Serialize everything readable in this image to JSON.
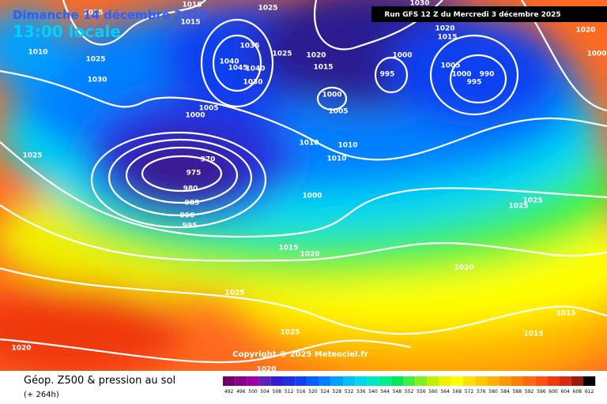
{
  "header": {
    "date": "Dimanche 14 décembre 2025",
    "time": "13:00 locale",
    "run": "Run GFS 12 Z du Mercredi 3 décembre 2025"
  },
  "copyright": "Copyright © 2025 Meteociel.fr",
  "footer": {
    "title": "Géop. Z500 & pression au sol",
    "lead": "(+ 264h)"
  },
  "isobar_labels": [
    1015,
    1015,
    1015,
    1025,
    1010,
    1025,
    1030,
    1035,
    1040,
    1045,
    1040,
    1030,
    1025,
    1020,
    1015,
    1000,
    1005,
    1005,
    1000,
    1000,
    995,
    1005,
    1000,
    995,
    990,
    1020,
    1015,
    1010,
    1010,
    1010,
    1025,
    970,
    975,
    980,
    985,
    990,
    995,
    1000,
    1025,
    1025,
    1015,
    1020,
    1020,
    1025,
    1015,
    1015,
    1025,
    1020,
    1020,
    1020,
    1000,
    1030
  ],
  "legend": {
    "values": [
      492,
      496,
      500,
      504,
      508,
      512,
      516,
      520,
      524,
      528,
      532,
      536,
      540,
      544,
      548,
      552,
      556,
      560,
      564,
      568,
      572,
      576,
      580,
      584,
      588,
      592,
      596,
      600,
      604,
      608,
      612
    ],
    "colors": [
      "#6e006e",
      "#8a008a",
      "#a000a8",
      "#6020c0",
      "#3020d0",
      "#2030e0",
      "#1040f0",
      "#0060ff",
      "#0080ff",
      "#00a0ff",
      "#00c0ff",
      "#00d8f0",
      "#00e8c0",
      "#00f090",
      "#00e860",
      "#40f040",
      "#80f020",
      "#c0f000",
      "#f0f000",
      "#ffff00",
      "#ffe000",
      "#ffc800",
      "#ffb000",
      "#ff9800",
      "#ff8000",
      "#ff6810",
      "#ff5010",
      "#f03810",
      "#d82810",
      "#a01808",
      "#000000"
    ]
  }
}
